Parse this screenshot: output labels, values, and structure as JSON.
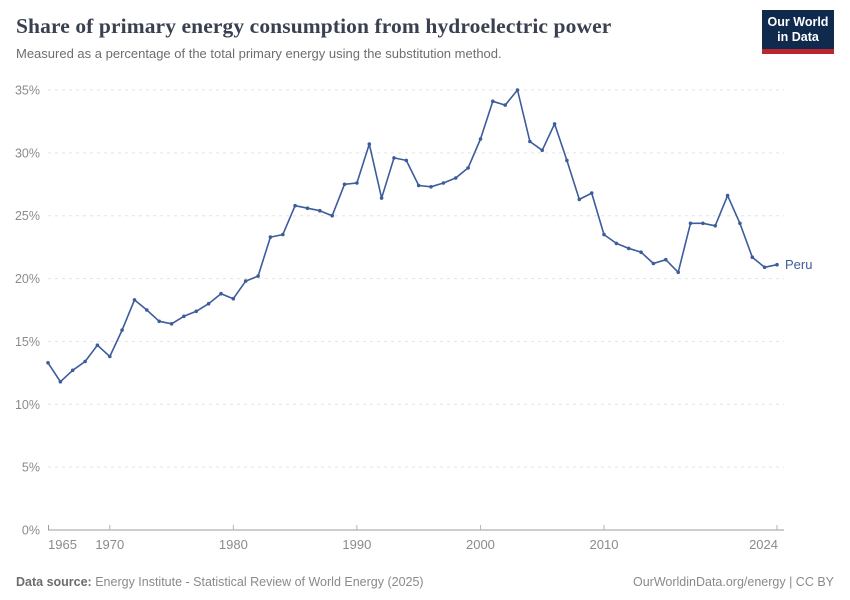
{
  "header": {
    "title": "Share of primary energy consumption from hydroelectric power",
    "subtitle": "Measured as a percentage of the total primary energy using the substitution method.",
    "logo": {
      "line1": "Our World",
      "line2": "in Data",
      "bg_color": "#102a4e",
      "accent_color": "#b9282e"
    }
  },
  "footer": {
    "source_label": "Data source:",
    "source_text": " Energy Institute - Statistical Review of World Energy (2025)",
    "credit": "OurWorldinData.org/energy | CC BY"
  },
  "chart_data": {
    "type": "line",
    "title": "Share of primary energy consumption from hydroelectric power",
    "subtitle": "Measured as a percentage of the total primary energy using the substitution method.",
    "xlabel": "",
    "ylabel": "",
    "xlim": [
      1965,
      2024
    ],
    "ylim": [
      0,
      35
    ],
    "grid": "horizontal-dashed",
    "legend_position": "end-of-line-label",
    "y_ticks": [
      {
        "value": 0,
        "label": "0%"
      },
      {
        "value": 5,
        "label": "5%"
      },
      {
        "value": 10,
        "label": "10%"
      },
      {
        "value": 15,
        "label": "15%"
      },
      {
        "value": 20,
        "label": "20%"
      },
      {
        "value": 25,
        "label": "25%"
      },
      {
        "value": 30,
        "label": "30%"
      },
      {
        "value": 35,
        "label": "35%"
      }
    ],
    "x_ticks": [
      {
        "year": 1965,
        "label": "1965",
        "anchor": "start",
        "tick": false
      },
      {
        "year": 1970,
        "label": "1970",
        "anchor": "middle",
        "tick": true
      },
      {
        "year": 1980,
        "label": "1980",
        "anchor": "middle",
        "tick": true
      },
      {
        "year": 1990,
        "label": "1990",
        "anchor": "middle",
        "tick": true
      },
      {
        "year": 2000,
        "label": "2000",
        "anchor": "middle",
        "tick": true
      },
      {
        "year": 2010,
        "label": "2010",
        "anchor": "middle",
        "tick": true
      },
      {
        "year": 2024,
        "label": "2024",
        "anchor": "end",
        "tick": true
      }
    ],
    "series": [
      {
        "name": "Peru",
        "color": "#3d5c9c",
        "years": [
          1965,
          1966,
          1967,
          1968,
          1969,
          1970,
          1971,
          1972,
          1973,
          1974,
          1975,
          1976,
          1977,
          1978,
          1979,
          1980,
          1981,
          1982,
          1983,
          1984,
          1985,
          1986,
          1987,
          1988,
          1989,
          1990,
          1991,
          1992,
          1993,
          1994,
          1995,
          1996,
          1997,
          1998,
          1999,
          2000,
          2001,
          2002,
          2003,
          2004,
          2005,
          2006,
          2007,
          2008,
          2009,
          2010,
          2011,
          2012,
          2013,
          2014,
          2015,
          2016,
          2017,
          2018,
          2019,
          2020,
          2021,
          2022,
          2023,
          2024
        ],
        "values": [
          13.3,
          11.8,
          12.7,
          13.4,
          14.7,
          13.8,
          15.9,
          18.3,
          17.5,
          16.6,
          16.4,
          17.0,
          17.4,
          18.0,
          18.8,
          18.4,
          19.8,
          20.2,
          23.3,
          23.5,
          25.8,
          25.6,
          25.4,
          25.0,
          27.5,
          27.6,
          30.7,
          26.4,
          29.6,
          29.4,
          27.4,
          27.3,
          27.6,
          28.0,
          28.8,
          31.1,
          34.1,
          33.8,
          35.0,
          30.9,
          30.2,
          32.3,
          29.4,
          26.3,
          26.8,
          23.5,
          22.8,
          22.4,
          22.1,
          21.2,
          21.5,
          20.5,
          24.4,
          24.4,
          24.2,
          26.6,
          24.4,
          21.7,
          20.9,
          21.1
        ]
      }
    ]
  }
}
